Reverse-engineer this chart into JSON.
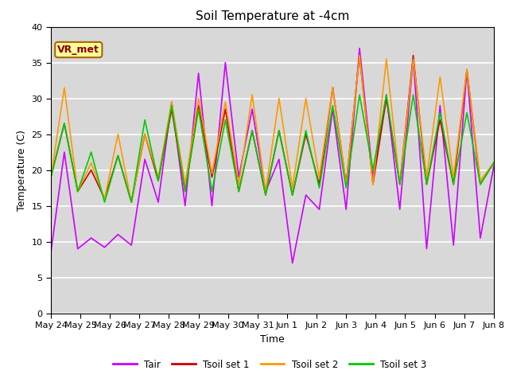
{
  "title": "Soil Temperature at -4cm",
  "xlabel": "Time",
  "ylabel": "Temperature (C)",
  "ylim": [
    0,
    40
  ],
  "yticks": [
    0,
    5,
    10,
    15,
    20,
    25,
    30,
    35,
    40
  ],
  "bg_color": "#d8d8d8",
  "fig_color": "#ffffff",
  "line_colors": {
    "Tair": "#cc00ff",
    "Tsoil set 1": "#cc0000",
    "Tsoil set 2": "#ff9900",
    "Tsoil set 3": "#00cc00"
  },
  "annotation_text": "VR_met",
  "annotation_bg": "#ffff99",
  "annotation_border": "#aa6600",
  "annotation_text_color": "#880000",
  "x_labels": [
    "May 24",
    "May 25",
    "May 26",
    "May 27",
    "May 28",
    "May 29",
    "May 30",
    "May 31",
    "Jun 1",
    "Jun 2",
    "Jun 3",
    "Jun 4",
    "Jun 5",
    "Jun 6",
    "Jun 7",
    "Jun 8"
  ],
  "tair": [
    8.5,
    22.5,
    9.0,
    10.5,
    9.2,
    11.0,
    9.5,
    21.5,
    15.5,
    29.5,
    15.0,
    33.5,
    15.0,
    35.0,
    19.0,
    28.5,
    17.0,
    21.5,
    7.0,
    16.5,
    14.5,
    28.5,
    14.5,
    37.0,
    19.0,
    30.5,
    14.5,
    35.5,
    9.0,
    29.0,
    9.5,
    34.0,
    10.5,
    20.5
  ],
  "tsoil1": [
    19.0,
    26.5,
    17.0,
    20.0,
    16.0,
    22.0,
    15.5,
    25.0,
    18.5,
    28.5,
    17.0,
    29.0,
    19.0,
    28.5,
    17.0,
    25.5,
    16.5,
    25.5,
    16.5,
    25.0,
    18.0,
    31.5,
    18.0,
    36.0,
    18.0,
    30.0,
    18.0,
    36.0,
    18.0,
    27.0,
    18.0,
    34.0,
    18.0,
    21.0
  ],
  "tsoil2": [
    19.0,
    31.5,
    17.0,
    21.0,
    16.0,
    25.0,
    15.5,
    25.0,
    19.0,
    29.5,
    18.0,
    30.0,
    19.5,
    29.5,
    18.0,
    30.5,
    17.0,
    30.0,
    17.5,
    30.0,
    19.0,
    31.5,
    18.0,
    36.0,
    18.0,
    35.5,
    18.0,
    35.5,
    19.0,
    33.0,
    19.0,
    34.0,
    18.5,
    21.0
  ],
  "tsoil3": [
    19.0,
    26.5,
    17.0,
    22.5,
    15.5,
    22.0,
    15.5,
    27.0,
    18.5,
    29.0,
    17.0,
    28.5,
    17.0,
    27.0,
    17.0,
    25.5,
    16.5,
    25.5,
    16.5,
    25.5,
    17.5,
    29.0,
    17.5,
    30.5,
    20.0,
    30.5,
    18.0,
    30.5,
    18.0,
    28.0,
    18.0,
    28.0,
    18.0,
    21.0
  ]
}
